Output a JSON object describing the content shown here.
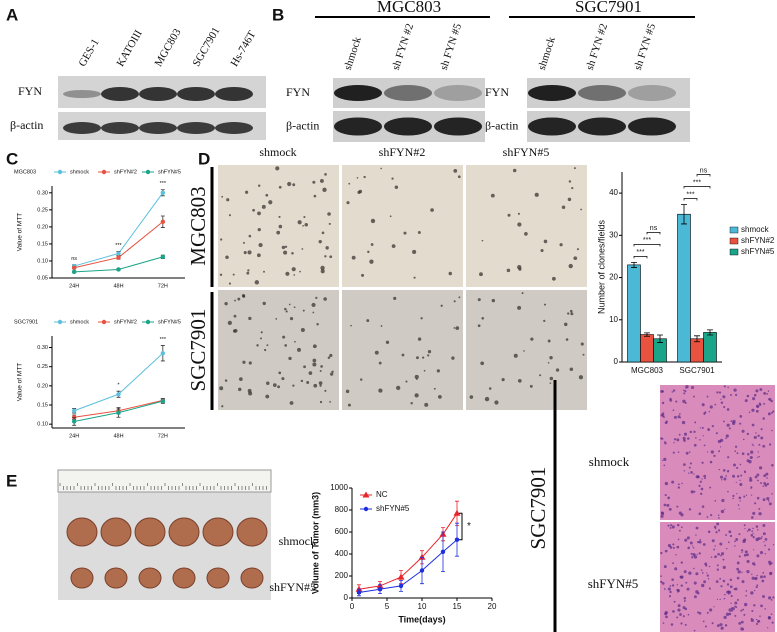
{
  "panels": {
    "A": {
      "letter": "A",
      "lanes": [
        "GES-1",
        "KATOIII",
        "MGC803",
        "SGC7901",
        "Hs-746T"
      ],
      "rows": [
        "FYN",
        "β-actin"
      ]
    },
    "B": {
      "letter": "B",
      "groups": [
        "MGC803",
        "SGC7901"
      ],
      "lanes": [
        "shmock",
        "sh FYN #2",
        "sh FYN #5"
      ],
      "rows": [
        "FYN",
        "β-actin"
      ]
    },
    "C": {
      "letter": "C"
    },
    "D": {
      "letter": "D",
      "columns": [
        "shmock",
        "shFYN#2",
        "shFYN#5"
      ],
      "rows": [
        "MGC803",
        "SGC7901"
      ]
    },
    "E": {
      "letter": "E",
      "rows": [
        "shmock",
        "shFYN#5"
      ]
    },
    "F": {
      "group": "SGC7901",
      "rows": [
        "shmock",
        "shFYN#5"
      ]
    }
  },
  "chart_data": [
    {
      "type": "line",
      "title": "MGC803",
      "legend": "top",
      "ylabel": "Value of MTT",
      "categories": [
        "24H",
        "48H",
        "72H"
      ],
      "ylim": [
        0.05,
        0.32
      ],
      "yticks": [
        0.05,
        {
          "value": 0.1,
          "label": "0.10"
        },
        0.15,
        {
          "value": 0.2,
          "label": "0.20"
        },
        0.25,
        {
          "value": 0.3,
          "label": "0.30"
        }
      ],
      "annotations": [
        "ns",
        "***",
        "***"
      ],
      "series": [
        {
          "name": "shmock",
          "color": "#5bc0de",
          "values": [
            0.085,
            0.122,
            0.3
          ],
          "errors": [
            0.004,
            0.006,
            0.009
          ]
        },
        {
          "name": "shFYN#2",
          "color": "#e8523f",
          "values": [
            0.08,
            0.11,
            0.215
          ],
          "errors": [
            0.003,
            0.005,
            0.017
          ]
        },
        {
          "name": "shFYN#5",
          "color": "#1aa58a",
          "values": [
            0.068,
            0.075,
            0.112
          ],
          "errors": [
            0.003,
            0.003,
            0.005
          ]
        }
      ]
    },
    {
      "type": "line",
      "title": "SGC7901",
      "legend": "top",
      "ylabel": "Value of MTT",
      "categories": [
        "24H",
        "48H",
        "72H"
      ],
      "ylim": [
        0.09,
        0.33
      ],
      "yticks": [
        {
          "value": 0.1,
          "label": "0.10"
        },
        0.15,
        {
          "value": 0.2,
          "label": "0.20"
        },
        0.25,
        {
          "value": 0.3,
          "label": "0.30"
        }
      ],
      "annotations": [
        null,
        "*",
        "***"
      ],
      "series": [
        {
          "name": "shmock",
          "color": "#5bc0de",
          "values": [
            0.135,
            0.178,
            0.285
          ],
          "errors": [
            0.006,
            0.008,
            0.02
          ]
        },
        {
          "name": "shFYN#2",
          "color": "#e8523f",
          "values": [
            0.118,
            0.135,
            0.162
          ],
          "errors": [
            0.006,
            0.008,
            0.005
          ]
        },
        {
          "name": "shFYN#5",
          "color": "#1aa58a",
          "values": [
            0.107,
            0.13,
            0.16
          ],
          "errors": [
            0.01,
            0.012,
            0.006
          ]
        }
      ]
    },
    {
      "type": "bar",
      "legend": "right",
      "ylabel": "Number of clones/fields",
      "categories": [
        "MGC803",
        "SGC7901"
      ],
      "ylim": [
        0,
        45
      ],
      "yticks": [
        0,
        10,
        20,
        30,
        40
      ],
      "annotations": [
        [
          "***",
          "***",
          "ns"
        ],
        [
          "***",
          "***",
          "ns"
        ]
      ],
      "series": [
        {
          "name": "shmock",
          "color": "#4bb8d6",
          "values": [
            23,
            35
          ],
          "errors": [
            0.6,
            2.3
          ]
        },
        {
          "name": "shFYN#2",
          "color": "#e8523f",
          "values": [
            6.5,
            5.5
          ],
          "errors": [
            0.4,
            0.7
          ]
        },
        {
          "name": "shFYN#5",
          "color": "#1aa58a",
          "values": [
            5.5,
            7
          ],
          "errors": [
            0.9,
            0.6
          ]
        }
      ]
    },
    {
      "type": "line",
      "legend": "upper left",
      "xlabel": "Time(days)",
      "ylabel": "Volume of  Tumor (mm3)",
      "x": [
        1,
        4,
        7,
        10,
        13,
        15
      ],
      "xlim": [
        0,
        20
      ],
      "xticks": [
        0,
        5,
        10,
        15,
        20
      ],
      "ylim": [
        0,
        1000
      ],
      "yticks": [
        0,
        200,
        400,
        600,
        800,
        1000
      ],
      "annotations": [
        "*"
      ],
      "series": [
        {
          "name": "NC",
          "color": "#e8232a",
          "marker": "triangle",
          "values": [
            80,
            110,
            190,
            370,
            580,
            770
          ],
          "errors": [
            40,
            40,
            60,
            60,
            60,
            110
          ]
        },
        {
          "name": "shFYN#5",
          "color": "#1c2ee0",
          "marker": "circle",
          "values": [
            50,
            80,
            110,
            250,
            420,
            530
          ],
          "errors": [
            30,
            40,
            50,
            120,
            180,
            150
          ]
        }
      ]
    }
  ]
}
